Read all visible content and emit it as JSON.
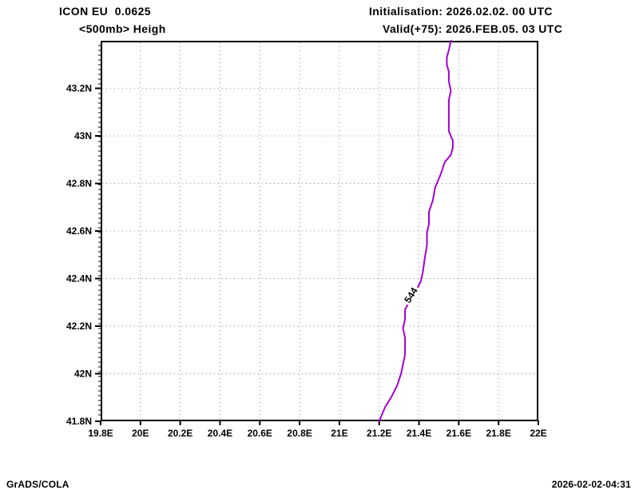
{
  "header": {
    "left_line1": "ICON EU  0.0625",
    "left_line2": "<500mb> Heigh",
    "right_line1": "Initialisation: 2026.02.02. 00 UTC",
    "right_line2": "Valid(+75): 2026.FEB.05. 03 UTC"
  },
  "footer": {
    "left": "GrADS/COLA",
    "right": "2026-02-02-04:31"
  },
  "chart_data": {
    "type": "line",
    "subtype": "contour_map",
    "title": "ICON EU 0.0625 <500mb> Heigh",
    "xlabel": "",
    "ylabel": "",
    "xlim": [
      19.8,
      22.0
    ],
    "ylim": [
      41.8,
      43.4
    ],
    "grid": true,
    "grid_color": "#8c8c8c",
    "frame_color": "#000000",
    "x_ticks": [
      {
        "value": 19.8,
        "label": "19.8E"
      },
      {
        "value": 20.0,
        "label": "20E"
      },
      {
        "value": 20.2,
        "label": "20.2E"
      },
      {
        "value": 20.4,
        "label": "20.4E"
      },
      {
        "value": 20.6,
        "label": "20.6E"
      },
      {
        "value": 20.8,
        "label": "20.8E"
      },
      {
        "value": 21.0,
        "label": "21E"
      },
      {
        "value": 21.2,
        "label": "21.2E"
      },
      {
        "value": 21.4,
        "label": "21.4E"
      },
      {
        "value": 21.6,
        "label": "21.6E"
      },
      {
        "value": 21.8,
        "label": "21.8E"
      },
      {
        "value": 22.0,
        "label": "22E"
      }
    ],
    "y_ticks": [
      {
        "value": 41.8,
        "label": "41.8N"
      },
      {
        "value": 42.0,
        "label": "42N"
      },
      {
        "value": 42.2,
        "label": "42.2N"
      },
      {
        "value": 42.4,
        "label": "42.4N"
      },
      {
        "value": 42.6,
        "label": "42.6N"
      },
      {
        "value": 42.8,
        "label": "42.8N"
      },
      {
        "value": 43.0,
        "label": "43N"
      },
      {
        "value": 43.2,
        "label": "43.2N"
      }
    ],
    "series": [
      {
        "name": "500mb height contour",
        "color": "#A300D4",
        "label": {
          "text": "544",
          "lon": 21.36,
          "lat": 42.33,
          "rotation_deg": -58
        },
        "points": [
          [
            21.56,
            43.4
          ],
          [
            21.55,
            43.36
          ],
          [
            21.54,
            43.33
          ],
          [
            21.54,
            43.3
          ],
          [
            21.55,
            43.27
          ],
          [
            21.55,
            43.23
          ],
          [
            21.56,
            43.19
          ],
          [
            21.55,
            43.15
          ],
          [
            21.55,
            43.1
          ],
          [
            21.55,
            43.06
          ],
          [
            21.55,
            43.02
          ],
          [
            21.57,
            42.98
          ],
          [
            21.57,
            42.95
          ],
          [
            21.56,
            42.92
          ],
          [
            21.53,
            42.89
          ],
          [
            21.51,
            42.84
          ],
          [
            21.48,
            42.78
          ],
          [
            21.47,
            42.73
          ],
          [
            21.45,
            42.68
          ],
          [
            21.45,
            42.63
          ],
          [
            21.44,
            42.59
          ],
          [
            21.44,
            42.54
          ],
          [
            21.43,
            42.49
          ],
          [
            21.42,
            42.43
          ],
          [
            21.41,
            42.39
          ],
          [
            21.38,
            42.34
          ],
          [
            21.35,
            42.3
          ],
          [
            21.33,
            42.27
          ],
          [
            21.33,
            42.23
          ],
          [
            21.32,
            42.19
          ],
          [
            21.33,
            42.15
          ],
          [
            21.33,
            42.12
          ],
          [
            21.33,
            42.08
          ],
          [
            21.32,
            42.04
          ],
          [
            21.31,
            42.0
          ],
          [
            21.29,
            41.95
          ],
          [
            21.26,
            41.9
          ],
          [
            21.23,
            41.86
          ],
          [
            21.21,
            41.82
          ],
          [
            21.2,
            41.8
          ]
        ]
      }
    ]
  }
}
